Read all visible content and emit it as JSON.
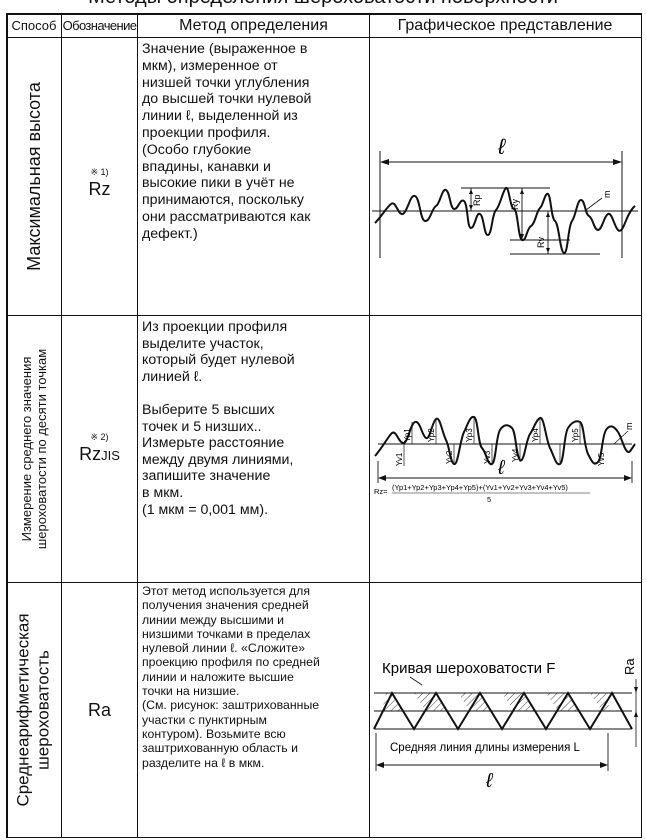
{
  "header": {
    "title_partial": "Методы определения шероховатости поверхности",
    "col_method": "Способ",
    "col_designation": "Обозначение",
    "col_definition": "Метод определения",
    "col_graphic": "Графическое представление"
  },
  "rows": [
    {
      "method": "Максимальная высота",
      "footnote": "※ 1)",
      "symbol": "Rz",
      "symbol_sub": "",
      "description": "Значение (выраженное в\nмкм), измеренное от\nнизшей точки углубления\nдо высшей точки нулевой\nлинии ℓ, выделенной из\nпроекции профиля.\n(Особо глубокие\nвпадины, канавки и\nвысокие пики в учёт не\nпринимаются, поскольку\nони рассматриваются как\nдефект.)",
      "graphic": {
        "length_label": "ℓ",
        "rp_label": "Rp",
        "ry_label": "Ry",
        "rv_label": "Rv",
        "m_label": "m"
      }
    },
    {
      "method_line1": "Измерение среднего значения",
      "method_line2": "шероховатости по десяти точкам",
      "footnote": "※ 2)",
      "symbol": "Rz",
      "symbol_sub": "JIS",
      "description": "Из проекции профиля\nвыделите участок,\nкоторый будет нулевой\nлинией ℓ.\n\nВыберите 5 высших\nточек и 5 низших..\nИзмерьте расстояние\nмежду двумя линиями,\nзапишите значение\nв мкм.\n(1 мкм = 0,001 мм).",
      "graphic": {
        "length_label": "ℓ",
        "peak_labels": [
          "Yp1",
          "Yp2",
          "Yp3",
          "Yp4",
          "Yp5"
        ],
        "valley_labels": [
          "Yv1",
          "Yv2",
          "Yv3",
          "Yv4",
          "Yv5"
        ],
        "m_label": "m",
        "formula_prefix": "Rz=",
        "formula_numerator": "(Yp1+Yp2+Yp3+Yp4+Yp5)+(Yv1+Yv2+Yv3+Yv4+Yv5)",
        "formula_denominator": "5"
      }
    },
    {
      "method_line1": "Среднеарифметическая",
      "method_line2": "шероховатость",
      "footnote": "",
      "symbol": "Ra",
      "symbol_sub": "",
      "description": "Этот метод используется для\nполучения значения средней\nлинии между высшими и\nнизшими точками в пределах\nнулевой линии ℓ. «Сложите»\nпроекцию профиля по средней\nлинии и наложите высшие\nточки на низшие.\n(См. рисунок: заштрихованные\nучастки с пунктирным\nконтуром). Возьмите всю\nзаштрихованную область и\nразделите на ℓ в мкм.",
      "graphic": {
        "curve_label": "Кривая шероховатости F",
        "ra_label": "Ra",
        "mean_line_label": "Средняя линия длины измерения L",
        "length_label": "ℓ"
      }
    }
  ]
}
